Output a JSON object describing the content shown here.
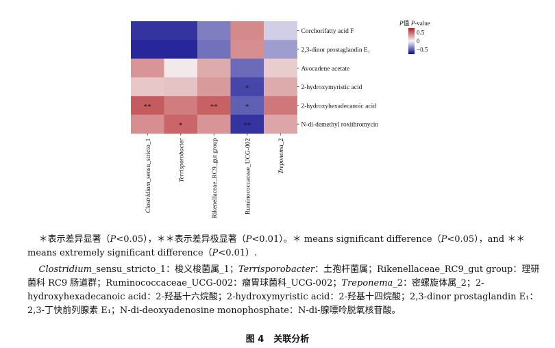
{
  "chart_data": {
    "type": "heatmap",
    "rows": [
      "Corchorifatty acid F",
      "2,3-dinor prostaglandin E₁",
      "Avocadene acetate",
      "2-hydroxymyristic acid",
      "2-hydroxyhexadecanoic acid",
      "N-di-demethyl roxithromycin"
    ],
    "columns": [
      "Clostridium_sensu_stricto_1",
      "Terrisporobacter",
      "Rikenellaceae_RC9_gut group",
      "Ruminococcaceae_UCG-002",
      "Treponema_2"
    ],
    "values": [
      [
        -0.62,
        -0.62,
        -0.38,
        0.38,
        -0.12
      ],
      [
        -0.66,
        -0.66,
        -0.42,
        0.36,
        -0.28
      ],
      [
        0.34,
        0.04,
        0.26,
        -0.44,
        0.14
      ],
      [
        0.16,
        0.18,
        0.32,
        -0.56,
        0.26
      ],
      [
        0.54,
        0.42,
        0.52,
        -0.48,
        0.44
      ],
      [
        0.36,
        0.5,
        0.34,
        -0.62,
        0.28
      ]
    ],
    "significance": [
      [
        "",
        "",
        "",
        "",
        ""
      ],
      [
        "",
        "",
        "",
        "",
        ""
      ],
      [
        "",
        "",
        "",
        "",
        ""
      ],
      [
        "",
        "",
        "",
        "*",
        ""
      ],
      [
        "**",
        "",
        "**",
        "*",
        ""
      ],
      [
        "",
        "*",
        "",
        "**",
        ""
      ]
    ],
    "legend_title_prefix": "P值 ",
    "legend_title_italic": "P",
    "legend_title_suffix": "-value",
    "legend_ticks": [
      "0.5",
      "0",
      "−0.5"
    ],
    "vmin": -0.75,
    "vmax": 0.75,
    "colors": {
      "low": "#0b0a8e",
      "mid": "#f5f5f5",
      "high": "#b41f24"
    }
  },
  "caption1": {
    "a": "＊表示差异显著（",
    "b": "P",
    "c": "<0.05），＊＊表示差异极显著（",
    "d": "P",
    "e": "<0.01）。＊ means significant difference（",
    "f": "P",
    "g": "<0.05），and ＊＊ means extremely significant difference（",
    "h": "P",
    "i": "<0.01）."
  },
  "caption2": {
    "a": "Clostridium",
    "b": "_sensu_stricto_1：梭义梭菌属_1；",
    "c": "Terrisporobacter",
    "d": "：土孢杆菌属；Rikenellaceae_RC9_gut group：理研菌科 RC9 肠道群；Ruminococcaceae_UCG-002：瘤胃球菌科_UCG-002；",
    "e": "Treponema",
    "f": "_2：密螺旋体属_2；2-hydroxyhexadecanoic acid：2-羟基十六烷酸；2-hydroxymyristic acid：2-羟基十四烷酸；2,3-dinor prostaglandin E₁：2,3-丁快前列腺素 E₁；N-di-deoxyadenosine monophosphate：N-di-腺嘌呤脱氧核苷酸。"
  },
  "figure": {
    "number": "图 4",
    "title": "关联分析"
  }
}
